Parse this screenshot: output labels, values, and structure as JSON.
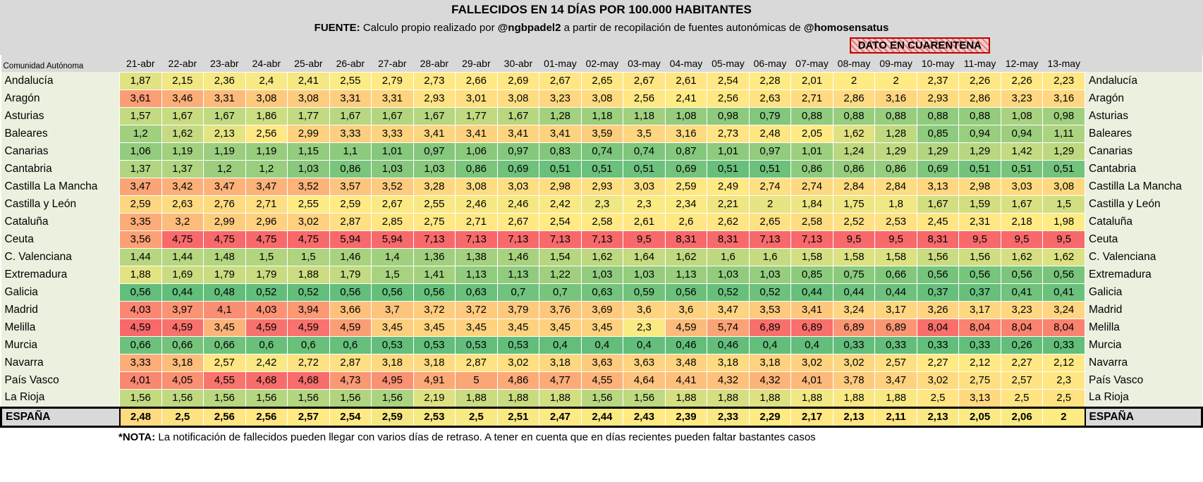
{
  "header": {
    "title": "FALLECIDOS EN 14 DÍAS POR 100.000 HABITANTES",
    "source_segments": [
      {
        "text": "FUENTE:",
        "bold": true
      },
      {
        "text": " Calculo propio realizado por ",
        "bold": false
      },
      {
        "text": "@ngbpadel2",
        "bold": true
      },
      {
        "text": " a partir de recopilación de fuentes autonómicas de ",
        "bold": false
      },
      {
        "text": "@homosensatus",
        "bold": true
      }
    ],
    "quarantine_label": "DATO EN CUARENTENA",
    "corner_label": "Comunidad Autónoma"
  },
  "chart_data": {
    "type": "heatmap",
    "title": "FALLECIDOS EN 14 DÍAS POR 100.000 HABITANTES",
    "decimal_separator": ",",
    "columns": [
      "21-abr",
      "22-abr",
      "23-abr",
      "24-abr",
      "25-abr",
      "26-abr",
      "27-abr",
      "28-abr",
      "29-abr",
      "30-abr",
      "01-may",
      "02-may",
      "03-may",
      "04-may",
      "05-may",
      "06-may",
      "07-may",
      "08-may",
      "09-may",
      "10-may",
      "11-may",
      "12-may",
      "13-may"
    ],
    "rows": [
      {
        "name": "Andalucía",
        "values": [
          1.87,
          2.15,
          2.36,
          2.4,
          2.41,
          2.55,
          2.79,
          2.73,
          2.66,
          2.69,
          2.67,
          2.65,
          2.67,
          2.61,
          2.54,
          2.28,
          2.01,
          2,
          2,
          2.37,
          2.26,
          2.26,
          2.23
        ]
      },
      {
        "name": "Aragón",
        "values": [
          3.61,
          3.46,
          3.31,
          3.08,
          3.08,
          3.31,
          3.31,
          2.93,
          3.01,
          3.08,
          3.23,
          3.08,
          2.56,
          2.41,
          2.56,
          2.63,
          2.71,
          2.86,
          3.16,
          2.93,
          2.86,
          3.23,
          3.16
        ]
      },
      {
        "name": "Asturias",
        "values": [
          1.57,
          1.67,
          1.67,
          1.86,
          1.77,
          1.67,
          1.67,
          1.67,
          1.77,
          1.67,
          1.28,
          1.18,
          1.18,
          1.08,
          0.98,
          0.79,
          0.88,
          0.88,
          0.88,
          0.88,
          0.88,
          1.08,
          0.98
        ]
      },
      {
        "name": "Baleares",
        "values": [
          1.2,
          1.62,
          2.13,
          2.56,
          2.99,
          3.33,
          3.33,
          3.41,
          3.41,
          3.41,
          3.41,
          3.59,
          3.5,
          3.16,
          2.73,
          2.48,
          2.05,
          1.62,
          1.28,
          0.85,
          0.94,
          0.94,
          1.11
        ]
      },
      {
        "name": "Canarias",
        "values": [
          1.06,
          1.19,
          1.19,
          1.19,
          1.15,
          1.1,
          1.01,
          0.97,
          1.06,
          0.97,
          0.83,
          0.74,
          0.74,
          0.87,
          1.01,
          0.97,
          1.01,
          1.24,
          1.29,
          1.29,
          1.29,
          1.42,
          1.29
        ]
      },
      {
        "name": "Cantabria",
        "values": [
          1.37,
          1.37,
          1.2,
          1.2,
          1.03,
          0.86,
          1.03,
          1.03,
          0.86,
          0.69,
          0.51,
          0.51,
          0.51,
          0.69,
          0.51,
          0.51,
          0.86,
          0.86,
          0.86,
          0.69,
          0.51,
          0.51,
          0.51
        ]
      },
      {
        "name": "Castilla La Mancha",
        "values": [
          3.47,
          3.42,
          3.47,
          3.47,
          3.52,
          3.57,
          3.52,
          3.28,
          3.08,
          3.03,
          2.98,
          2.93,
          3.03,
          2.59,
          2.49,
          2.74,
          2.74,
          2.84,
          2.84,
          3.13,
          2.98,
          3.03,
          3.08
        ]
      },
      {
        "name": "Castilla y León",
        "values": [
          2.59,
          2.63,
          2.76,
          2.71,
          2.55,
          2.59,
          2.67,
          2.55,
          2.46,
          2.46,
          2.42,
          2.3,
          2.3,
          2.34,
          2.21,
          2,
          1.84,
          1.75,
          1.8,
          1.67,
          1.59,
          1.67,
          1.5
        ]
      },
      {
        "name": "Cataluña",
        "values": [
          3.35,
          3.2,
          2.99,
          2.96,
          3.02,
          2.87,
          2.85,
          2.75,
          2.71,
          2.67,
          2.54,
          2.58,
          2.61,
          2.6,
          2.62,
          2.65,
          2.58,
          2.52,
          2.53,
          2.45,
          2.31,
          2.18,
          1.98
        ]
      },
      {
        "name": "Ceuta",
        "values": [
          3.56,
          4.75,
          4.75,
          4.75,
          4.75,
          5.94,
          5.94,
          7.13,
          7.13,
          7.13,
          7.13,
          7.13,
          9.5,
          8.31,
          8.31,
          7.13,
          7.13,
          9.5,
          9.5,
          8.31,
          9.5,
          9.5,
          9.5
        ]
      },
      {
        "name": "C. Valenciana",
        "values": [
          1.44,
          1.44,
          1.48,
          1.5,
          1.5,
          1.46,
          1.4,
          1.36,
          1.38,
          1.46,
          1.54,
          1.62,
          1.64,
          1.62,
          1.6,
          1.6,
          1.58,
          1.58,
          1.58,
          1.56,
          1.56,
          1.62,
          1.62
        ]
      },
      {
        "name": "Extremadura",
        "values": [
          1.88,
          1.69,
          1.79,
          1.79,
          1.88,
          1.79,
          1.5,
          1.41,
          1.13,
          1.13,
          1.22,
          1.03,
          1.03,
          1.13,
          1.03,
          1.03,
          0.85,
          0.75,
          0.66,
          0.56,
          0.56,
          0.56,
          0.56
        ]
      },
      {
        "name": "Galicia",
        "values": [
          0.56,
          0.44,
          0.48,
          0.52,
          0.52,
          0.56,
          0.56,
          0.56,
          0.63,
          0.7,
          0.7,
          0.63,
          0.59,
          0.56,
          0.52,
          0.52,
          0.44,
          0.44,
          0.44,
          0.37,
          0.37,
          0.41,
          0.41
        ]
      },
      {
        "name": "Madrid",
        "values": [
          4.03,
          3.97,
          4.1,
          4.03,
          3.94,
          3.66,
          3.7,
          3.72,
          3.72,
          3.79,
          3.76,
          3.69,
          3.6,
          3.6,
          3.47,
          3.53,
          3.41,
          3.24,
          3.17,
          3.26,
          3.17,
          3.23,
          3.24
        ]
      },
      {
        "name": "Melilla",
        "values": [
          4.59,
          4.59,
          3.45,
          4.59,
          4.59,
          4.59,
          3.45,
          3.45,
          3.45,
          3.45,
          3.45,
          3.45,
          2.3,
          4.59,
          5.74,
          6.89,
          6.89,
          6.89,
          6.89,
          8.04,
          8.04,
          8.04,
          8.04
        ]
      },
      {
        "name": "Murcia",
        "values": [
          0.66,
          0.66,
          0.66,
          0.6,
          0.6,
          0.6,
          0.53,
          0.53,
          0.53,
          0.53,
          0.4,
          0.4,
          0.4,
          0.46,
          0.46,
          0.4,
          0.4,
          0.33,
          0.33,
          0.33,
          0.33,
          0.26,
          0.33
        ]
      },
      {
        "name": "Navarra",
        "values": [
          3.33,
          3.18,
          2.57,
          2.42,
          2.72,
          2.87,
          3.18,
          3.18,
          2.87,
          3.02,
          3.18,
          3.63,
          3.63,
          3.48,
          3.18,
          3.18,
          3.02,
          3.02,
          2.57,
          2.27,
          2.12,
          2.27,
          2.12
        ]
      },
      {
        "name": "País Vasco",
        "values": [
          4.01,
          4.05,
          4.55,
          4.68,
          4.68,
          4.73,
          4.95,
          4.91,
          5,
          4.86,
          4.77,
          4.55,
          4.64,
          4.41,
          4.32,
          4.32,
          4.01,
          3.78,
          3.47,
          3.02,
          2.75,
          2.57,
          2.3
        ]
      },
      {
        "name": "La Rioja",
        "values": [
          1.56,
          1.56,
          1.56,
          1.56,
          1.56,
          1.56,
          1.56,
          2.19,
          1.88,
          1.88,
          1.88,
          1.56,
          1.56,
          1.88,
          1.88,
          1.88,
          1.88,
          1.88,
          1.88,
          2.5,
          3.13,
          2.5,
          2.5
        ]
      }
    ],
    "total_row": {
      "name": "ESPAÑA",
      "values": [
        2.48,
        2.5,
        2.56,
        2.56,
        2.57,
        2.54,
        2.59,
        2.53,
        2.5,
        2.51,
        2.47,
        2.44,
        2.43,
        2.39,
        2.33,
        2.29,
        2.17,
        2.13,
        2.11,
        2.13,
        2.05,
        2.06,
        2
      ]
    },
    "color_scale": {
      "min_color": "#63BE7B",
      "mid_color": "#FFEB84",
      "max_color": "#F8696B",
      "mapping": "per-column 3-color scale: min=green, median=yellow, max=red"
    }
  },
  "footer": {
    "note_label": "*NOTA:",
    "note_text": " La notificación de fallecidos pueden llegar con varios días de retraso. A tener en cuenta que en días recientes pueden faltar bastantes casos"
  },
  "colors": {
    "header_bg": "#D9D9D9",
    "label_bg": "#EBF1DE",
    "quarantine_red": "#C00000"
  }
}
